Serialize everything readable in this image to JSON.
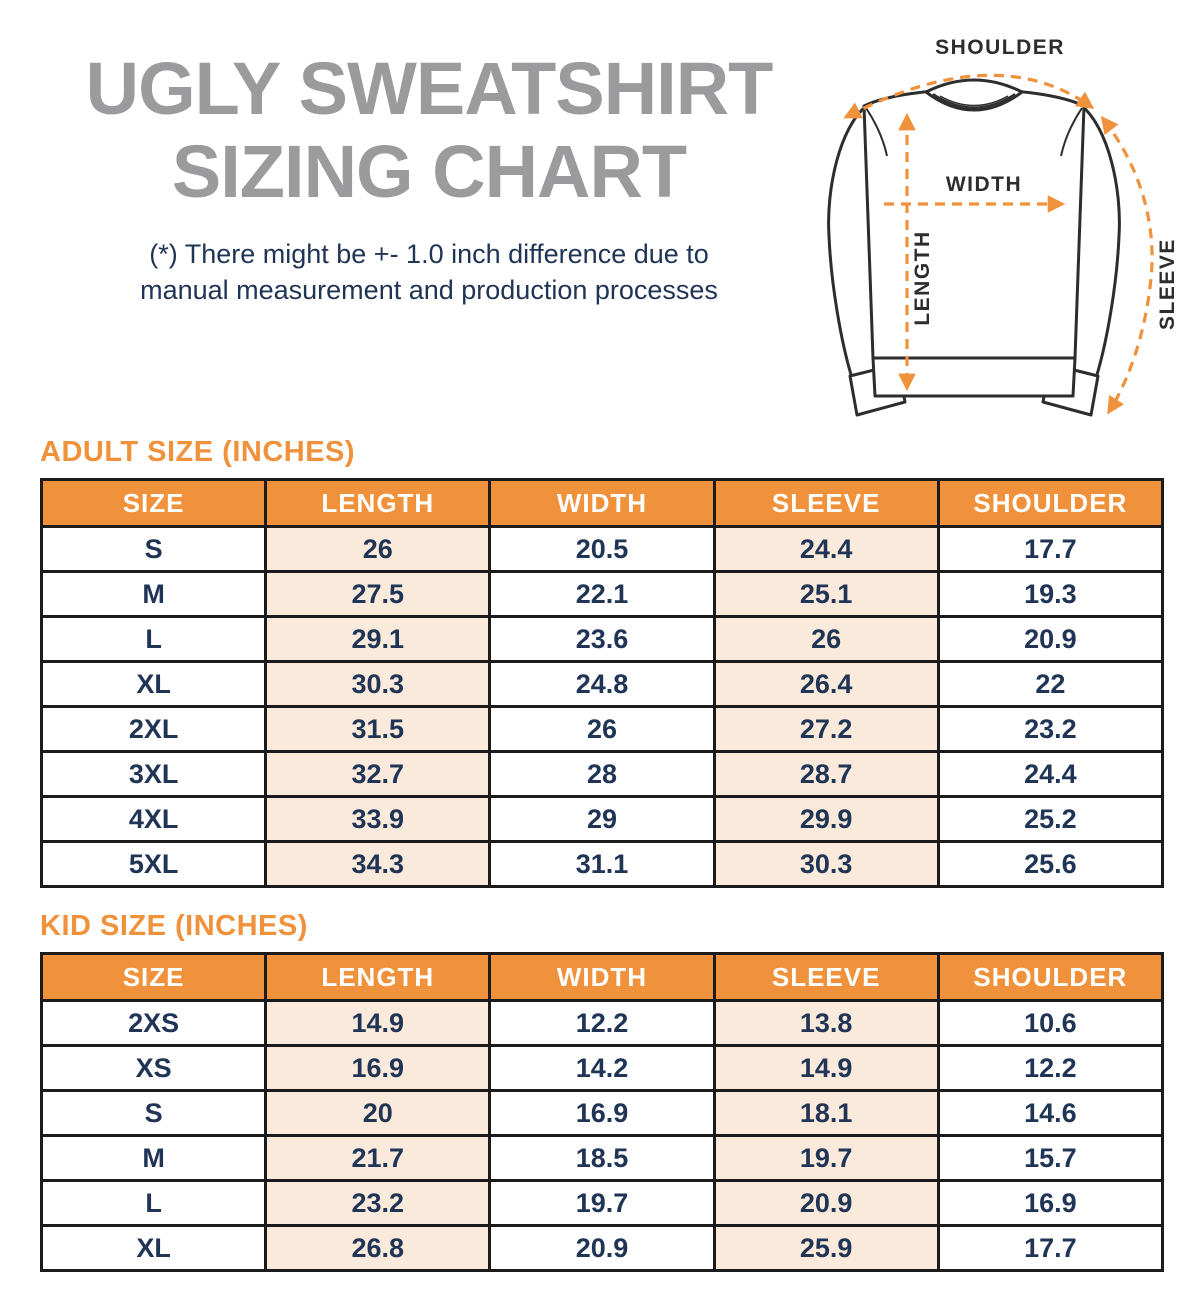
{
  "header": {
    "title_line1": "UGLY SWEATSHIRT",
    "title_line2": "SIZING CHART",
    "disclaimer_line1": "(*) There might be +- 1.0 inch difference due to",
    "disclaimer_line2": "manual measurement and production processes"
  },
  "diagram": {
    "labels": {
      "shoulder": "SHOULDER",
      "width": "WIDTH",
      "length": "LENGTH",
      "sleeve": "SLEEVE"
    }
  },
  "colors": {
    "accent_orange": "#f0913c",
    "cell_peach": "#f9eadc",
    "text_navy": "#203456",
    "title_gray": "#9b9b9d",
    "border_black": "#1b1b1b"
  },
  "chart_data": [
    {
      "type": "table",
      "title": "ADULT SIZE (INCHES)",
      "columns": [
        "SIZE",
        "LENGTH",
        "WIDTH",
        "SLEEVE",
        "SHOULDER"
      ],
      "rows": [
        [
          "S",
          "26",
          "20.5",
          "24.4",
          "17.7"
        ],
        [
          "M",
          "27.5",
          "22.1",
          "25.1",
          "19.3"
        ],
        [
          "L",
          "29.1",
          "23.6",
          "26",
          "20.9"
        ],
        [
          "XL",
          "30.3",
          "24.8",
          "26.4",
          "22"
        ],
        [
          "2XL",
          "31.5",
          "26",
          "27.2",
          "23.2"
        ],
        [
          "3XL",
          "32.7",
          "28",
          "28.7",
          "24.4"
        ],
        [
          "4XL",
          "33.9",
          "29",
          "29.9",
          "25.2"
        ],
        [
          "5XL",
          "34.3",
          "31.1",
          "30.3",
          "25.6"
        ]
      ]
    },
    {
      "type": "table",
      "title": "KID SIZE (INCHES)",
      "columns": [
        "SIZE",
        "LENGTH",
        "WIDTH",
        "SLEEVE",
        "SHOULDER"
      ],
      "rows": [
        [
          "2XS",
          "14.9",
          "12.2",
          "13.8",
          "10.6"
        ],
        [
          "XS",
          "16.9",
          "14.2",
          "14.9",
          "12.2"
        ],
        [
          "S",
          "20",
          "16.9",
          "18.1",
          "14.6"
        ],
        [
          "M",
          "21.7",
          "18.5",
          "19.7",
          "15.7"
        ],
        [
          "L",
          "23.2",
          "19.7",
          "20.9",
          "16.9"
        ],
        [
          "XL",
          "26.8",
          "20.9",
          "25.9",
          "17.7"
        ]
      ]
    }
  ]
}
